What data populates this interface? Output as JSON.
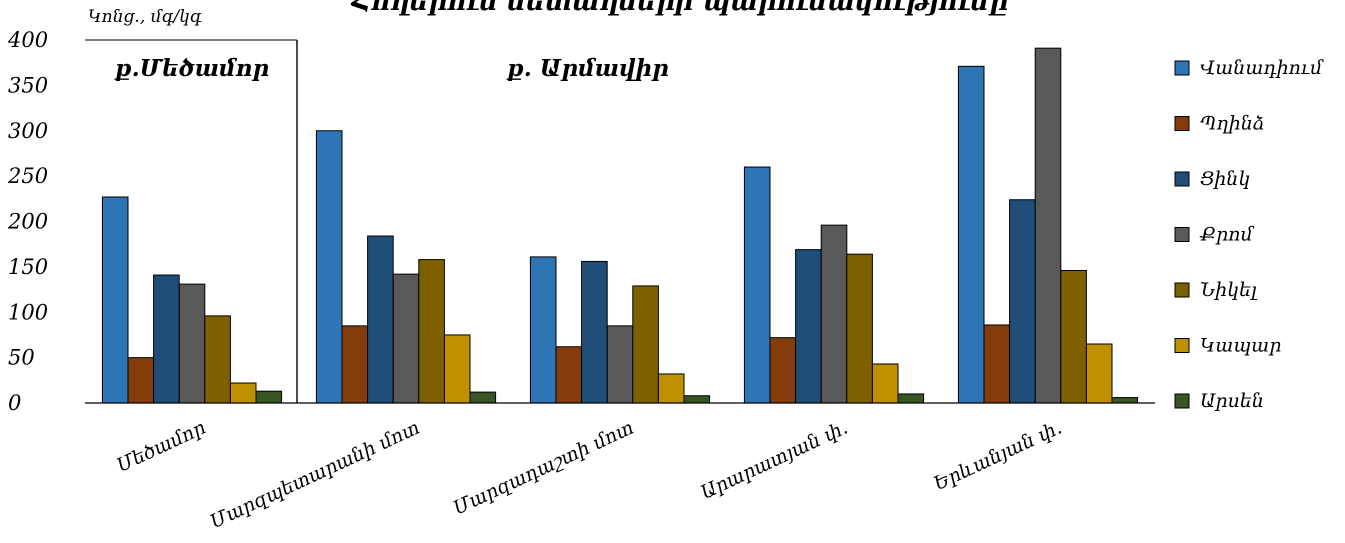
{
  "chart_data": {
    "type": "bar",
    "title": "Հողերում մետաղների պարունակությունը",
    "ylabel": "Կոնց., մգ/կգ",
    "ylim": [
      0,
      400
    ],
    "yticks": [
      0,
      50,
      100,
      150,
      200,
      250,
      300,
      350,
      400
    ],
    "categories": [
      "Մեծամոր",
      "Մարզպետարանի մոտ",
      "Մարզադաշտի մոտ",
      "Արարատյան փ.",
      "Երևանյան փ."
    ],
    "regions": [
      {
        "label": "ք.Մեծամոր",
        "categories": [
          "Մեծամոր"
        ]
      },
      {
        "label": "ք. Արմավիր",
        "categories": [
          "Մարզպետարանի մոտ",
          "Մարզադաշտի մոտ",
          "Արարատյան փ.",
          "Երևանյան փ."
        ]
      }
    ],
    "series": [
      {
        "name": "Վանադիում",
        "color": "#2E75B6",
        "values": [
          227,
          300,
          161,
          260,
          371
        ]
      },
      {
        "name": "Պղինձ",
        "color": "#843C0C",
        "values": [
          50,
          85,
          62,
          72,
          86
        ]
      },
      {
        "name": "Ցինկ",
        "color": "#1F4E79",
        "values": [
          141,
          184,
          156,
          169,
          224
        ]
      },
      {
        "name": "Քրոմ",
        "color": "#595959",
        "values": [
          131,
          142,
          85,
          196,
          391
        ]
      },
      {
        "name": "Նիկել",
        "color": "#7F6000",
        "values": [
          96,
          158,
          129,
          164,
          146
        ]
      },
      {
        "name": "Կապար",
        "color": "#BF9000",
        "values": [
          22,
          75,
          32,
          43,
          65
        ]
      },
      {
        "name": "Արսեն",
        "color": "#375623",
        "values": [
          13,
          12,
          8,
          10,
          6
        ]
      }
    ],
    "legend_position": "right",
    "grid": false
  }
}
